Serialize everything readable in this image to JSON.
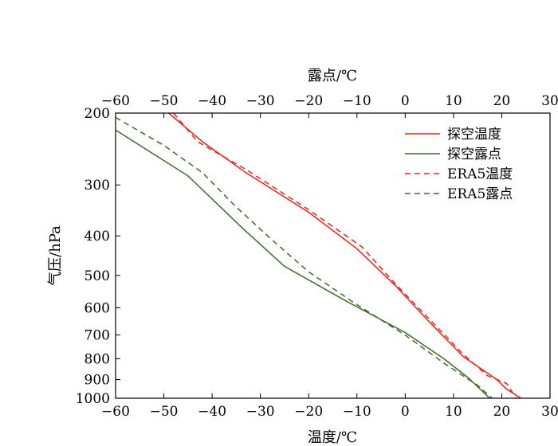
{
  "chart_data": {
    "type": "line",
    "xlabel_bottom": "温度/℃",
    "xlabel_top": "露点/℃",
    "ylabel": "气压/hPa",
    "x_range": [
      -60,
      30
    ],
    "x_ticks": [
      "−60",
      "−50",
      "−40",
      "−30",
      "−20",
      "−10",
      "0",
      "10",
      "20",
      "30"
    ],
    "x_tick_values": [
      -60,
      -50,
      -40,
      -30,
      -20,
      -10,
      0,
      10,
      20,
      30
    ],
    "y_scale": "log",
    "y_range": [
      1000,
      200
    ],
    "y_ticks": [
      "200",
      "300",
      "400",
      "500",
      "600",
      "700",
      "800",
      "900",
      "1000"
    ],
    "y_tick_values": [
      200,
      300,
      400,
      500,
      600,
      700,
      800,
      900,
      1000
    ],
    "grid": false,
    "legend_position": "top-right",
    "colors": {
      "red": "#e8231b",
      "green": "#3d6b2a"
    },
    "series": [
      {
        "name": "探空温度",
        "color": "#e8231b",
        "dash": "solid",
        "points": [
          [
            -49,
            200
          ],
          [
            -42,
            235
          ],
          [
            -33,
            280
          ],
          [
            -20,
            350
          ],
          [
            -10,
            430
          ],
          [
            -2,
            530
          ],
          [
            5,
            650
          ],
          [
            12,
            790
          ],
          [
            19,
            900
          ],
          [
            21,
            950
          ],
          [
            24,
            1000
          ]
        ]
      },
      {
        "name": "探空露点",
        "color": "#3d6b2a",
        "dash": "solid",
        "points": [
          [
            -60,
            220
          ],
          [
            -45,
            285
          ],
          [
            -34,
            380
          ],
          [
            -25,
            475
          ],
          [
            -12,
            580
          ],
          [
            0,
            690
          ],
          [
            8,
            800
          ],
          [
            13,
            890
          ],
          [
            17.5,
            1000
          ]
        ]
      },
      {
        "name": "ERA5温度",
        "color": "#e8231b",
        "dash": "dashed",
        "points": [
          [
            -48,
            200
          ],
          [
            -43,
            235
          ],
          [
            -33,
            275
          ],
          [
            -20,
            345
          ],
          [
            -9,
            425
          ],
          [
            -2,
            525
          ],
          [
            5,
            640
          ],
          [
            12,
            780
          ],
          [
            17,
            880
          ],
          [
            21,
            920
          ],
          [
            23,
            1000
          ]
        ]
      },
      {
        "name": "ERA5露点",
        "color": "#3d6b2a",
        "dash": "dashed",
        "points": [
          [
            -60,
            205
          ],
          [
            -50,
            240
          ],
          [
            -42,
            280
          ],
          [
            -35,
            340
          ],
          [
            -27,
            415
          ],
          [
            -20,
            490
          ],
          [
            -10,
            590
          ],
          [
            0,
            700
          ],
          [
            8,
            820
          ],
          [
            15,
            930
          ],
          [
            18,
            1000
          ]
        ]
      }
    ]
  }
}
